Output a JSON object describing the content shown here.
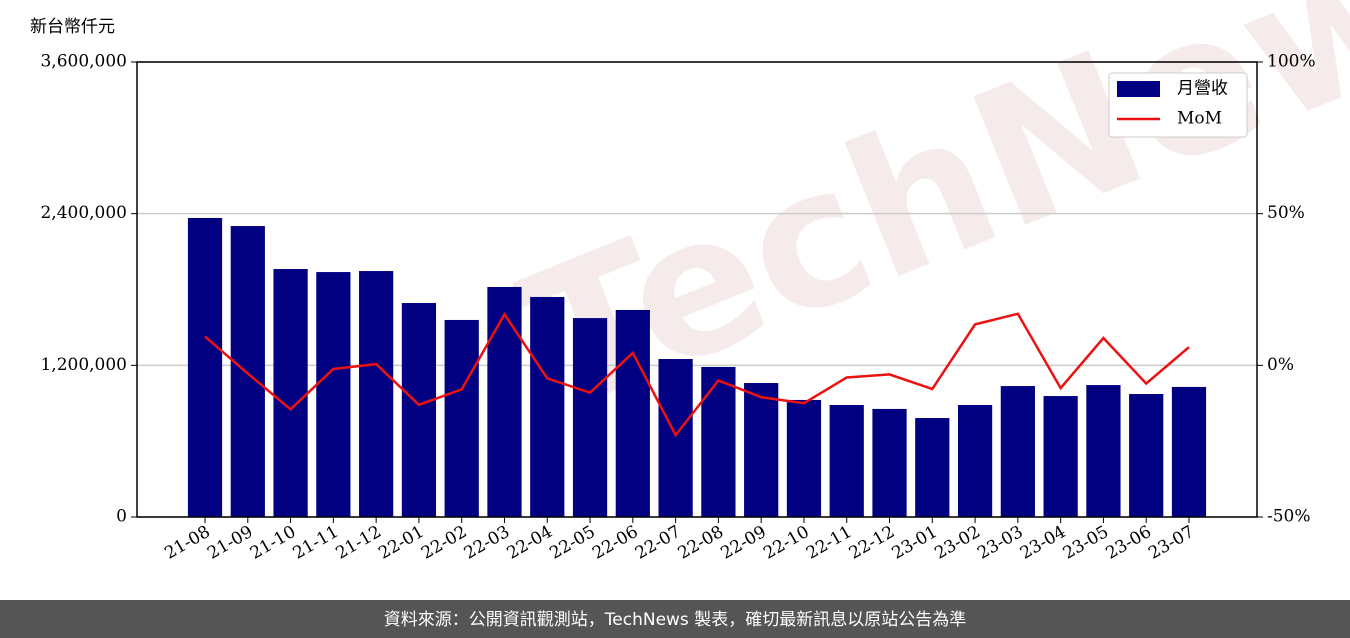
{
  "chart_data": {
    "type": "bar",
    "ylabel": "新台幣仟元",
    "watermark": "TechNews",
    "categories": [
      "21-08",
      "21-09",
      "21-10",
      "21-11",
      "21-12",
      "22-01",
      "22-02",
      "22-03",
      "22-04",
      "22-05",
      "22-06",
      "22-07",
      "22-08",
      "22-09",
      "22-10",
      "22-11",
      "22-12",
      "23-01",
      "23-02",
      "23-03",
      "23-04",
      "23-05",
      "23-06",
      "23-07"
    ],
    "series": [
      {
        "name": "月營收",
        "type": "bar",
        "color": "#000080",
        "values": [
          2366000,
          2302000,
          1962000,
          1938000,
          1946000,
          1693000,
          1559000,
          1820000,
          1741000,
          1574000,
          1638000,
          1250000,
          1187000,
          1060000,
          926000,
          886000,
          855000,
          783000,
          886000,
          1036000,
          957000,
          1044000,
          973000,
          1029000
        ]
      },
      {
        "name": "MoM",
        "type": "line",
        "color": "#ee1111",
        "axis": "y2",
        "values": [
          9.5,
          -2.7,
          -14.5,
          -1.2,
          0.4,
          -13,
          -7.9,
          16.8,
          -4.3,
          -9,
          4.1,
          -23,
          -5,
          -10.5,
          -12.5,
          -4,
          -3,
          -7.8,
          13.5,
          17,
          -7.5,
          9,
          -6,
          6
        ]
      }
    ],
    "ylim": [
      0,
      3600000
    ],
    "yticks": [
      0,
      {
        "value": 1200000,
        "label": "1,200,000"
      },
      {
        "value": 2400000,
        "label": "2,400,000"
      },
      {
        "value": 3600000,
        "label": "3,600,000"
      }
    ],
    "y2lim": [
      -50,
      100
    ],
    "y2ticks": [
      {
        "value": -50,
        "label": "-50%"
      },
      {
        "value": 0,
        "label": "0%"
      },
      {
        "value": 50,
        "label": "50%"
      },
      {
        "value": 100,
        "label": "100%"
      }
    ],
    "grid": true,
    "legend": "upper right"
  },
  "footer": "資料來源：公開資訊觀測站，TechNews 製表，確切最新訊息以原站公告為準"
}
